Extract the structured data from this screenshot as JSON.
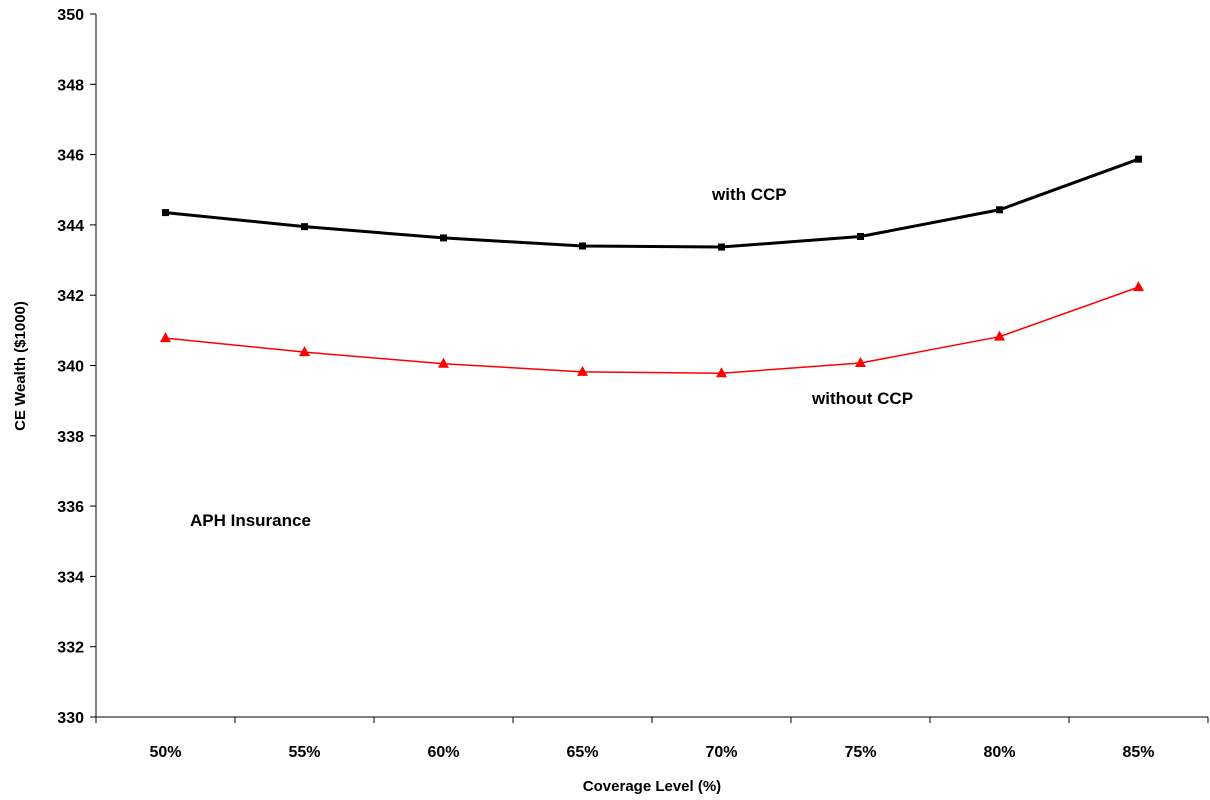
{
  "chart_data": {
    "type": "line",
    "categories": [
      "50%",
      "55%",
      "60%",
      "65%",
      "70%",
      "75%",
      "80%",
      "85%"
    ],
    "series": [
      {
        "values": [
          344.35,
          343.95,
          343.63,
          343.4,
          343.37,
          343.67,
          344.43,
          345.87
        ],
        "color": "#000000",
        "marker": "square"
      },
      {
        "values": [
          340.78,
          340.38,
          340.05,
          339.82,
          339.78,
          340.07,
          340.82,
          342.23
        ],
        "color": "#ff0000",
        "marker": "triangle"
      }
    ],
    "title": "",
    "xlabel": "Coverage Level (%)",
    "ylabel": "CE Wealth ($1000)",
    "ylim": [
      330,
      350
    ],
    "yticks": [
      "330",
      "332",
      "334",
      "336",
      "338",
      "340",
      "342",
      "344",
      "346",
      "348",
      "350"
    ],
    "grid": false,
    "annotations": {
      "with_ccp": "with CCP",
      "without_ccp": "without CCP",
      "aph": "APH Insurance"
    }
  }
}
